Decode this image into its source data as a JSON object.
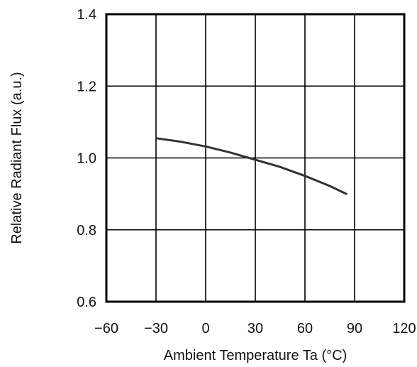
{
  "chart_data": {
    "type": "line",
    "title": "",
    "xlabel": "Ambient Temperature Ta (°C)",
    "ylabel": "Relative Radiant Flux (a.u.)",
    "xlim": [
      -60,
      120
    ],
    "ylim": [
      0.6,
      1.4
    ],
    "xticks": [
      -60,
      -30,
      0,
      30,
      60,
      90,
      120
    ],
    "xtick_labels": [
      "−60",
      "−30",
      "0",
      "30",
      "60",
      "90",
      "120"
    ],
    "yticks": [
      0.6,
      0.8,
      1.0,
      1.2,
      1.4
    ],
    "ytick_labels": [
      "0.6",
      "0.8",
      "1.0",
      "1.2",
      "1.4"
    ],
    "grid": true,
    "legend": "none",
    "series": [
      {
        "x": [
          -30,
          -15,
          0,
          15,
          30,
          45,
          60,
          75,
          85
        ],
        "y": [
          1.055,
          1.045,
          1.032,
          1.015,
          0.995,
          0.975,
          0.95,
          0.922,
          0.9
        ],
        "color": "#333333"
      }
    ]
  }
}
